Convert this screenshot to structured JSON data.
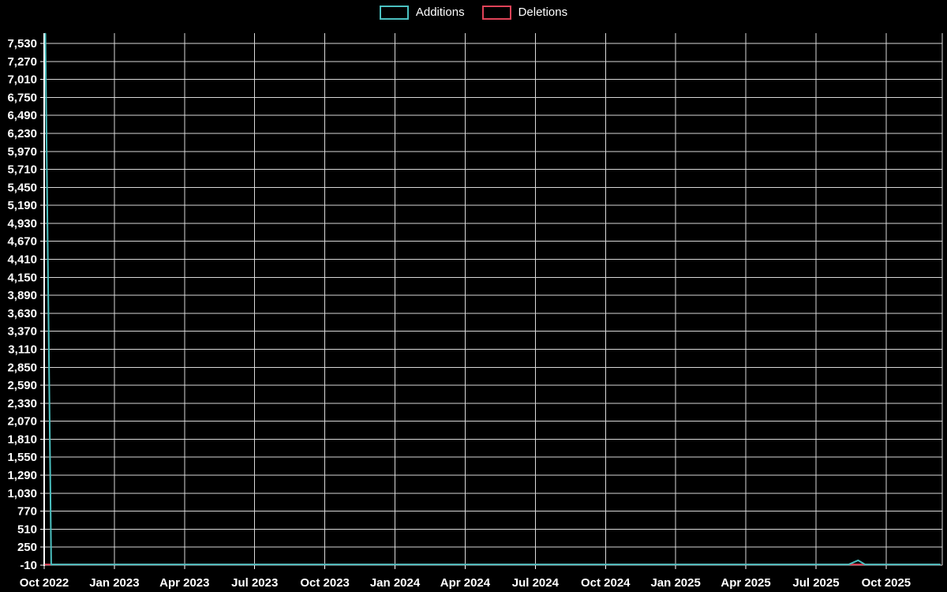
{
  "colors": {
    "background": "#000000",
    "text": "#ffffff",
    "grid": "#d9d9d9",
    "axis": "#ffffff",
    "additions": "#4bc0c0",
    "deletions": "#e04358"
  },
  "legend": {
    "items": [
      {
        "label": "Additions",
        "color": "#4bc0c0"
      },
      {
        "label": "Deletions",
        "color": "#e04358"
      }
    ]
  },
  "chart_data": {
    "type": "line",
    "title": "",
    "xlabel": "",
    "ylabel": "",
    "legend_position": "top-center",
    "grid": true,
    "xlim_months": [
      0,
      38.4
    ],
    "ylim": [
      -10,
      7690
    ],
    "x_tick_positions_months": [
      0,
      3,
      6,
      9,
      12,
      15,
      18,
      21,
      24,
      27,
      30,
      33,
      36
    ],
    "x_tick_labels": [
      "Oct 2022",
      "Jan 2023",
      "Apr 2023",
      "Jul 2023",
      "Oct 2023",
      "Jan 2024",
      "Apr 2024",
      "Jul 2024",
      "Oct 2024",
      "Jan 2025",
      "Apr 2025",
      "Jul 2025",
      "Oct 2025"
    ],
    "y_tick_values": [
      -10,
      250,
      510,
      770,
      1030,
      1290,
      1550,
      1810,
      2070,
      2330,
      2590,
      2850,
      3110,
      3370,
      3630,
      3890,
      4150,
      4410,
      4670,
      4930,
      5190,
      5450,
      5710,
      5970,
      6230,
      6490,
      6750,
      7010,
      7270,
      7530
    ],
    "y_tick_labels": [
      "-10",
      "250",
      "510",
      "770",
      "1,030",
      "1,290",
      "1,550",
      "1,810",
      "2,070",
      "2,330",
      "2,590",
      "2,850",
      "3,110",
      "3,370",
      "3,630",
      "3,890",
      "4,150",
      "4,410",
      "4,670",
      "4,930",
      "5,190",
      "5,450",
      "5,710",
      "5,970",
      "6,230",
      "6,490",
      "6,750",
      "7,010",
      "7,270",
      "7,530"
    ],
    "series": [
      {
        "name": "Deletions",
        "color": "#e04358",
        "points": [
          [
            0.05,
            0
          ],
          [
            38.3,
            0
          ]
        ]
      },
      {
        "name": "Additions",
        "color": "#4bc0c0",
        "points": [
          [
            0.05,
            7670
          ],
          [
            0.3,
            0
          ],
          [
            34.4,
            0
          ],
          [
            34.8,
            60
          ],
          [
            35.1,
            0
          ],
          [
            38.3,
            0
          ]
        ]
      }
    ]
  }
}
